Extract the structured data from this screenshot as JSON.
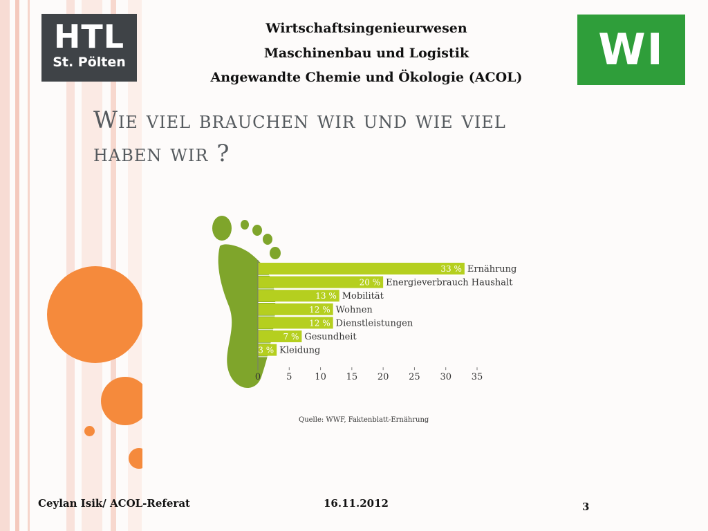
{
  "header": {
    "logo_left_line1": "HTL",
    "logo_left_line2": "St. Pölten",
    "logo_right": "WI",
    "lines": [
      "Wirtschaftsingenieurwesen",
      "Maschinenbau und  Logistik",
      "Angewandte Chemie und Ökologie (ACOL)"
    ]
  },
  "title": {
    "line1": "Wie viel brauchen wir und wie viel",
    "line2": "haben wir ?"
  },
  "chart_data": {
    "type": "bar",
    "orientation": "horizontal",
    "categories": [
      "Ernährung",
      "Energieverbrauch Haushalt",
      "Mobilität",
      "Wohnen",
      "Dienstleistungen",
      "Gesundheit",
      "Kleidung"
    ],
    "values": [
      33,
      20,
      13,
      12,
      12,
      7,
      3
    ],
    "value_labels": [
      "33 %",
      "20 %",
      "13 %",
      "12 %",
      "12 %",
      "7 %",
      "3 %"
    ],
    "x_ticks": [
      0,
      5,
      10,
      15,
      20,
      25,
      30,
      35
    ],
    "xlim": [
      0,
      35
    ],
    "source": "Quelle: WWF, Faktenblatt-Ernährung",
    "bar_color": "#b5cf1f",
    "foot_color": "#7fa52b"
  },
  "footer": {
    "author": "Ceylan Isik/ ACOL-Referat",
    "date": "16.11.2012",
    "page": "3"
  }
}
